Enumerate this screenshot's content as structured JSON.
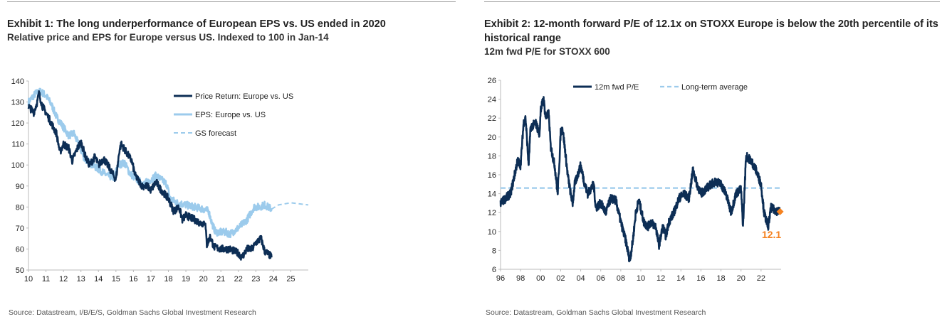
{
  "chart_data": [
    {
      "type": "line",
      "title": "Exhibit 1: The long underperformance of European EPS vs. US ended in 2020",
      "subtitle": "Relative price and EPS for Europe versus US. Indexed to 100 in Jan-14",
      "source": "Source: Datastream, I/B/E/S, Goldman Sachs Global Investment Research",
      "xlim": [
        2010,
        2026
      ],
      "ylim": [
        50,
        140
      ],
      "xticks": [
        "10",
        "11",
        "12",
        "13",
        "14",
        "15",
        "16",
        "17",
        "18",
        "19",
        "20",
        "21",
        "22",
        "23",
        "24",
        "25"
      ],
      "yticks": [
        "50",
        "60",
        "70",
        "80",
        "90",
        "100",
        "110",
        "120",
        "130",
        "140"
      ],
      "legend": [
        "Price Return: Europe vs. US",
        "EPS: Europe vs. US",
        "GS forecast"
      ],
      "legend_position": "top-right",
      "series": [
        {
          "name": "Price Return: Europe vs. US",
          "color": "#0d2e55",
          "x": [
            2010,
            2010.3,
            2010.5,
            2010.6,
            2010.8,
            2011,
            2011.3,
            2011.6,
            2011.8,
            2012,
            2012.3,
            2012.5,
            2012.8,
            2013,
            2013.3,
            2013.5,
            2013.8,
            2014,
            2014.3,
            2014.6,
            2014.8,
            2015,
            2015.2,
            2015.3,
            2015.6,
            2015.9,
            2016.1,
            2016.5,
            2016.8,
            2017,
            2017.3,
            2017.5,
            2017.8,
            2018,
            2018.3,
            2018.6,
            2018.8,
            2019,
            2019.5,
            2019.9,
            2020.1,
            2020.2,
            2020.4,
            2020.6,
            2021,
            2021.5,
            2022,
            2022.2,
            2022.5,
            2022.8,
            2023,
            2023.3,
            2023.5,
            2023.8,
            2023.9
          ],
          "y": [
            128,
            125,
            130,
            134,
            128,
            125,
            120,
            115,
            106,
            110,
            108,
            102,
            108,
            111,
            103,
            100,
            104,
            100,
            103,
            99,
            96,
            93,
            107,
            110,
            106,
            102,
            95,
            90,
            90,
            88,
            92,
            89,
            86,
            84,
            78,
            80,
            74,
            76,
            74,
            72,
            73,
            62,
            66,
            61,
            60,
            60,
            58,
            56,
            60,
            60,
            63,
            65,
            59,
            57,
            56
          ]
        },
        {
          "name": "EPS: Europe vs. US",
          "color": "#9ccbec",
          "x": [
            2010,
            2010.4,
            2010.7,
            2011,
            2011.3,
            2011.6,
            2012,
            2012.3,
            2012.6,
            2012.9,
            2013.2,
            2013.5,
            2014,
            2014.5,
            2014.9,
            2015.1,
            2015.5,
            2015.8,
            2016.2,
            2016.6,
            2017,
            2017.3,
            2017.6,
            2017.9,
            2018.1,
            2018.5,
            2019,
            2019.5,
            2020,
            2020.3,
            2020.5,
            2020.7,
            2021.3,
            2021.5,
            2022,
            2022.5,
            2022.9,
            2023.2,
            2023.5,
            2023.9
          ],
          "y": [
            130,
            134,
            135,
            133,
            129,
            123,
            118,
            114,
            115,
            109,
            103,
            101,
            98,
            95,
            94,
            100,
            101,
            96,
            93,
            91,
            93,
            95,
            93,
            91,
            84,
            82,
            81,
            80,
            79,
            78,
            72,
            68,
            68,
            67,
            70,
            74,
            80,
            80,
            81,
            79
          ]
        },
        {
          "name": "GS forecast",
          "color": "#9ccbec",
          "dashed": true,
          "x": [
            2023.9,
            2024.3,
            2025,
            2026
          ],
          "y": [
            79,
            81,
            82,
            81
          ]
        }
      ]
    },
    {
      "type": "line",
      "title": "Exhibit 2: 12-month forward P/E of 12.1x on STOXX Europe is below the 20th percentile of its historical range",
      "subtitle": "12m fwd P/E for STOXX 600",
      "source": "Source: Datastream, Goldman Sachs Global Investment Research",
      "xlim": [
        1996,
        2024
      ],
      "ylim": [
        6,
        26
      ],
      "xticks": [
        "96",
        "98",
        "00",
        "02",
        "04",
        "06",
        "08",
        "10",
        "12",
        "14",
        "16",
        "18",
        "20",
        "22"
      ],
      "yticks": [
        "6",
        "8",
        "10",
        "12",
        "14",
        "16",
        "18",
        "20",
        "22",
        "24",
        "26"
      ],
      "legend": [
        "12m fwd P/E",
        "Long-term average"
      ],
      "legend_position": "top",
      "long_term_average": 14.6,
      "annotation": {
        "label": "12.1",
        "x": 2023.9,
        "y": 12.1,
        "color": "#f58220"
      },
      "series": [
        {
          "name": "12m fwd P/E",
          "color": "#0d2e55",
          "x": [
            1996,
            1997,
            1997.3,
            1997.7,
            1998,
            1998.3,
            1998.5,
            1998.8,
            1999,
            1999.5,
            1999.9,
            2000,
            2000.3,
            2000.5,
            2000.8,
            2001,
            2001.4,
            2001.7,
            2001.9,
            2002,
            2002.2,
            2002.5,
            2002.7,
            2003,
            2003.2,
            2003.4,
            2003.7,
            2004,
            2004.4,
            2004.7,
            2005,
            2005.3,
            2005.5,
            2006,
            2006.5,
            2007,
            2007.5,
            2008,
            2008.5,
            2008.9,
            2009.2,
            2009.5,
            2009.8,
            2010.3,
            2010.7,
            2011,
            2011.5,
            2011.8,
            2012.2,
            2012.5,
            2012.8,
            2013.3,
            2013.8,
            2014.3,
            2014.8,
            2015.2,
            2015.6,
            2016,
            2016.5,
            2017,
            2017.5,
            2018,
            2018.5,
            2019,
            2019.5,
            2020,
            2020.2,
            2020.5,
            2021,
            2021.5,
            2022,
            2022.3,
            2022.7,
            2023,
            2023.5,
            2023.9
          ],
          "y": [
            13,
            14,
            15.5,
            17.5,
            17,
            21.5,
            22,
            17,
            21,
            21.5,
            20.3,
            23,
            24,
            22,
            22.5,
            19,
            17,
            14,
            18,
            20.5,
            20.9,
            18,
            16,
            14,
            13,
            15,
            16,
            17,
            15,
            14,
            14.5,
            15,
            12.5,
            13,
            12,
            13.5,
            13.3,
            11,
            9,
            6.9,
            9,
            12,
            13.3,
            11,
            10.5,
            11,
            10.5,
            8.5,
            10.5,
            9.5,
            11,
            12,
            13.5,
            14,
            13.5,
            16.5,
            15,
            14,
            14.5,
            15,
            15.3,
            15,
            14,
            12,
            14,
            14.5,
            10.5,
            18,
            17.5,
            16.5,
            15,
            12,
            10.5,
            12.5,
            12.2,
            12.1
          ]
        }
      ]
    }
  ]
}
